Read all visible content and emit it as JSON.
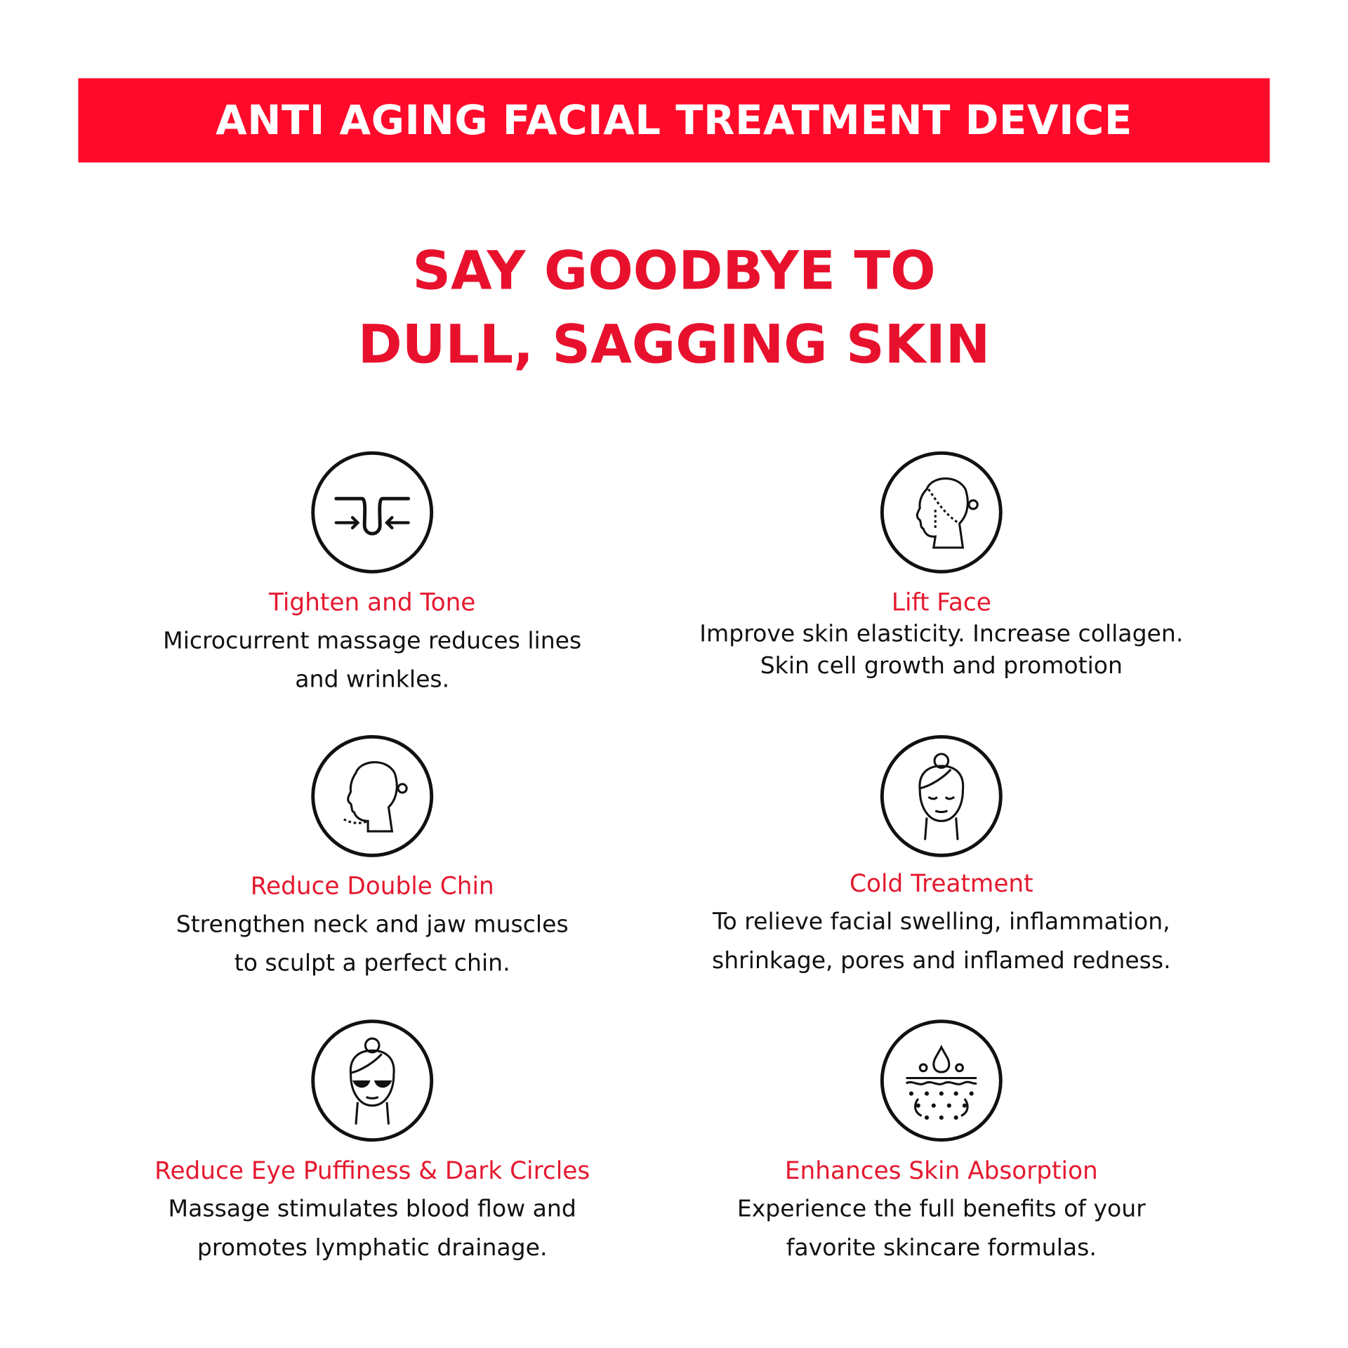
{
  "colors": {
    "accent": "#ff0a2a",
    "title_red": "#e4192f",
    "text": "#111111"
  },
  "banner": {
    "title": "ANTI AGING FACIAL TREATMENT DEVICE"
  },
  "headline": {
    "line1": "SAY GOODBYE TO",
    "line2": "DULL, SAGGING SKIN"
  },
  "features": [
    {
      "icon": "pore-tighten-icon",
      "title": "Tighten and Tone",
      "lines": [
        "Microcurrent massage reduces lines",
        "and wrinkles."
      ]
    },
    {
      "icon": "face-lift-icon",
      "title": "Lift Face",
      "lines": [
        "Improve skin elasticity. Increase collagen.",
        "Skin cell growth and promotion"
      ]
    },
    {
      "icon": "double-chin-icon",
      "title": "Reduce Double Chin",
      "lines": [
        "Strengthen neck and jaw muscles",
        "to sculpt a perfect chin."
      ]
    },
    {
      "icon": "cold-treatment-face-icon",
      "title": "Cold Treatment",
      "lines": [
        "To relieve facial swelling, inflammation,",
        "shrinkage, pores and inflamed redness."
      ]
    },
    {
      "icon": "eye-patch-face-icon",
      "title": "Reduce Eye Puffiness & Dark Circles",
      "lines": [
        "Massage stimulates blood flow and",
        "promotes lymphatic drainage."
      ]
    },
    {
      "icon": "skin-absorption-icon",
      "title": "Enhances Skin Absorption",
      "lines": [
        "Experience the full benefits of your",
        "favorite skincare formulas."
      ]
    }
  ]
}
